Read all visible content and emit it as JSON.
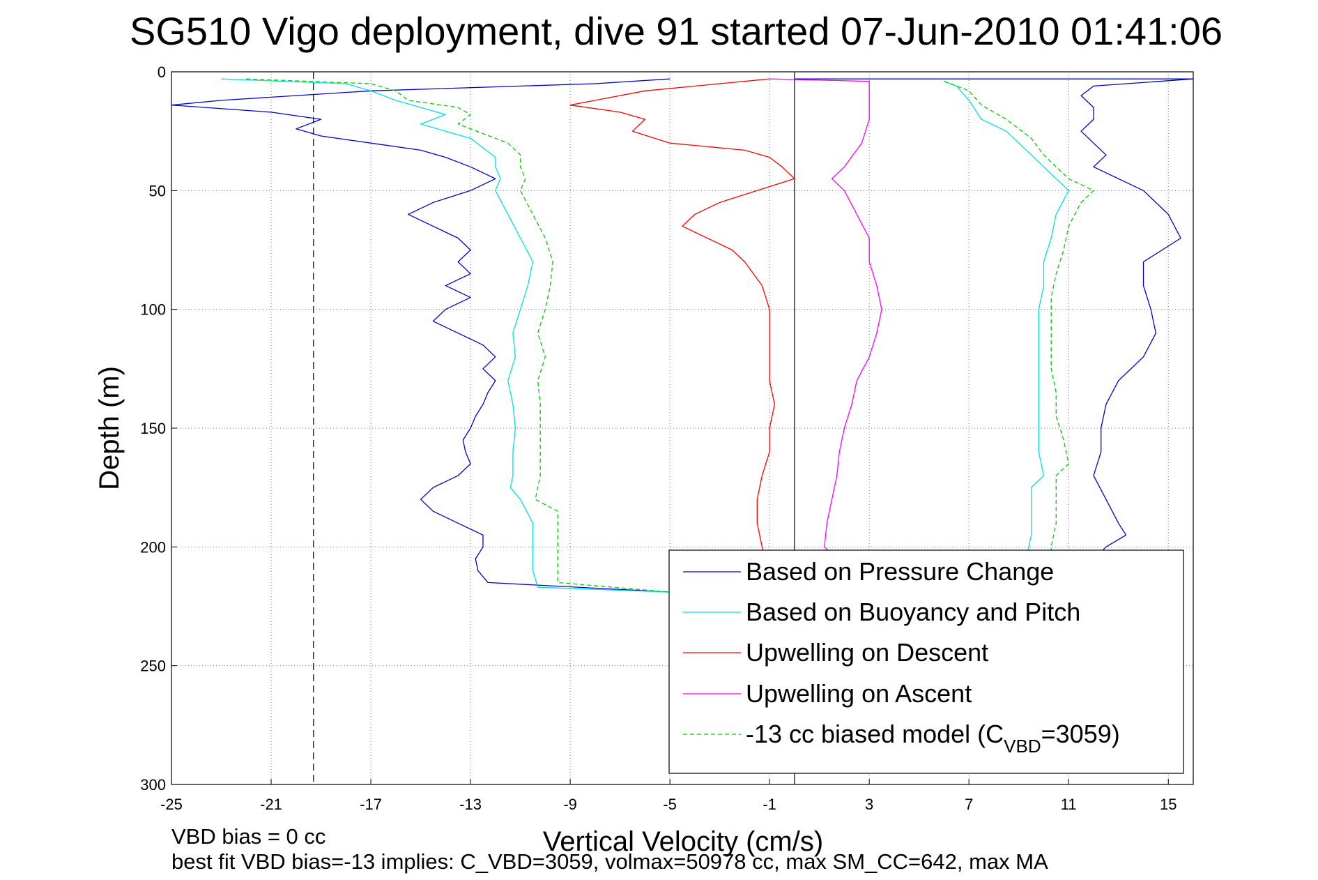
{
  "chart_data": {
    "type": "line",
    "title": "SG510 Vigo deployment, dive 91 started 07-Jun-2010 01:41:06",
    "xlabel": "Vertical Velocity (cm/s)",
    "ylabel": "Depth (m)",
    "xlim": [
      -25,
      16
    ],
    "ylim": [
      0,
      300
    ],
    "y_reversed": true,
    "grid": true,
    "legend_position": "bottom-right",
    "x_ticks": [
      "-25",
      "-21",
      "-17",
      "-13",
      "-9",
      "-5",
      "-1",
      "3",
      "7",
      "11",
      "15"
    ],
    "y_ticks": [
      "0",
      "50",
      "100",
      "150",
      "200",
      "250",
      "300"
    ],
    "reference_lines": [
      {
        "x": -19.3,
        "style": "dashed",
        "color": "#000000"
      },
      {
        "x": 0,
        "style": "solid",
        "color": "#000000"
      }
    ],
    "series": [
      {
        "name": "Based on Pressure Change",
        "color": "#0000cc",
        "style": "solid",
        "points": [
          [
            -5,
            3
          ],
          [
            -8,
            5
          ],
          [
            -17,
            8
          ],
          [
            -23,
            12
          ],
          [
            -25,
            14
          ],
          [
            -21,
            17
          ],
          [
            -19,
            20
          ],
          [
            -20,
            24
          ],
          [
            -19,
            27
          ],
          [
            -17,
            30
          ],
          [
            -15,
            33
          ],
          [
            -14,
            36
          ],
          [
            -13,
            40
          ],
          [
            -12,
            45
          ],
          [
            -13,
            50
          ],
          [
            -14.5,
            55
          ],
          [
            -15.5,
            60
          ],
          [
            -14.5,
            65
          ],
          [
            -13.5,
            70
          ],
          [
            -13,
            75
          ],
          [
            -13.5,
            80
          ],
          [
            -13,
            85
          ],
          [
            -14,
            90
          ],
          [
            -13,
            95
          ],
          [
            -14,
            100
          ],
          [
            -14.5,
            105
          ],
          [
            -13.5,
            110
          ],
          [
            -12.5,
            115
          ],
          [
            -12,
            120
          ],
          [
            -12.5,
            125
          ],
          [
            -12,
            130
          ],
          [
            -12.3,
            135
          ],
          [
            -12.5,
            140
          ],
          [
            -12.8,
            145
          ],
          [
            -13,
            150
          ],
          [
            -13.3,
            155
          ],
          [
            -13.2,
            160
          ],
          [
            -13,
            165
          ],
          [
            -13.5,
            170
          ],
          [
            -14.5,
            175
          ],
          [
            -15,
            180
          ],
          [
            -14.5,
            185
          ],
          [
            -13.5,
            190
          ],
          [
            -12.5,
            195
          ],
          [
            -12.5,
            200
          ],
          [
            -12.8,
            205
          ],
          [
            -12.7,
            210
          ],
          [
            -12.3,
            215
          ],
          [
            -5,
            219
          ]
        ]
      },
      {
        "name": "Based on Buoyancy and Pitch",
        "color": "#00e0e0",
        "style": "solid",
        "points": [
          [
            -23,
            3
          ],
          [
            -18,
            5
          ],
          [
            -17,
            8
          ],
          [
            -16,
            12
          ],
          [
            -15,
            15
          ],
          [
            -14,
            18
          ],
          [
            -15,
            22
          ],
          [
            -14,
            25
          ],
          [
            -13,
            28
          ],
          [
            -12.5,
            32
          ],
          [
            -12,
            36
          ],
          [
            -12,
            40
          ],
          [
            -11.8,
            45
          ],
          [
            -12,
            50
          ],
          [
            -11.5,
            60
          ],
          [
            -11,
            70
          ],
          [
            -10.5,
            80
          ],
          [
            -10.7,
            90
          ],
          [
            -11,
            100
          ],
          [
            -11.3,
            110
          ],
          [
            -11.2,
            120
          ],
          [
            -11.5,
            130
          ],
          [
            -11.3,
            140
          ],
          [
            -11.2,
            150
          ],
          [
            -11.3,
            160
          ],
          [
            -11.3,
            170
          ],
          [
            -11.4,
            175
          ],
          [
            -11,
            180
          ],
          [
            -10.5,
            190
          ],
          [
            -10.5,
            200
          ],
          [
            -10.5,
            210
          ],
          [
            -10.3,
            217
          ],
          [
            -5,
            219
          ]
        ]
      },
      {
        "name": "Upwelling on Descent",
        "color": "#ff0000",
        "style": "solid",
        "points": [
          [
            -1,
            3
          ],
          [
            -3,
            5
          ],
          [
            -6,
            8
          ],
          [
            -8,
            12
          ],
          [
            -9,
            14
          ],
          [
            -7,
            17
          ],
          [
            -6,
            20
          ],
          [
            -6.5,
            25
          ],
          [
            -5,
            30
          ],
          [
            -2,
            33
          ],
          [
            -1,
            36
          ],
          [
            -0.5,
            40
          ],
          [
            0,
            45
          ],
          [
            -1.5,
            50
          ],
          [
            -3,
            55
          ],
          [
            -4,
            60
          ],
          [
            -4.5,
            65
          ],
          [
            -3.5,
            70
          ],
          [
            -2.5,
            75
          ],
          [
            -2,
            80
          ],
          [
            -1.3,
            90
          ],
          [
            -1,
            100
          ],
          [
            -1,
            110
          ],
          [
            -1,
            120
          ],
          [
            -1,
            130
          ],
          [
            -0.8,
            140
          ],
          [
            -1,
            150
          ],
          [
            -1,
            160
          ],
          [
            -1.3,
            170
          ],
          [
            -1.5,
            180
          ],
          [
            -1.5,
            190
          ],
          [
            -1.3,
            200
          ],
          [
            -1.2,
            205
          ]
        ]
      },
      {
        "name": "Upwelling on Ascent",
        "color": "#ff00ff",
        "style": "solid",
        "points": [
          [
            -1,
            3
          ],
          [
            3,
            4
          ],
          [
            3,
            10
          ],
          [
            3,
            20
          ],
          [
            2.7,
            30
          ],
          [
            2,
            40
          ],
          [
            1.5,
            45
          ],
          [
            2,
            50
          ],
          [
            2.5,
            60
          ],
          [
            3,
            70
          ],
          [
            3,
            80
          ],
          [
            3.3,
            90
          ],
          [
            3.5,
            100
          ],
          [
            3.3,
            110
          ],
          [
            3,
            120
          ],
          [
            2.5,
            130
          ],
          [
            2.3,
            140
          ],
          [
            2,
            150
          ],
          [
            1.8,
            160
          ],
          [
            1.7,
            170
          ],
          [
            1.5,
            180
          ],
          [
            1.3,
            190
          ],
          [
            1.2,
            200
          ],
          [
            1.5,
            203
          ]
        ]
      },
      {
        "name": "-13 cc biased model (C",
        "color": "#00cc00",
        "style": "dashed",
        "points": [
          [
            -22,
            3
          ],
          [
            -17,
            5
          ],
          [
            -16,
            8
          ],
          [
            -15.5,
            12
          ],
          [
            -13.5,
            15
          ],
          [
            -13,
            18
          ],
          [
            -13.5,
            22
          ],
          [
            -12.5,
            26
          ],
          [
            -11.5,
            30
          ],
          [
            -11,
            35
          ],
          [
            -11,
            40
          ],
          [
            -10.8,
            45
          ],
          [
            -11,
            50
          ],
          [
            -10.5,
            60
          ],
          [
            -10,
            70
          ],
          [
            -9.7,
            80
          ],
          [
            -9.8,
            90
          ],
          [
            -10,
            100
          ],
          [
            -10.3,
            110
          ],
          [
            -10,
            120
          ],
          [
            -10.3,
            130
          ],
          [
            -10.2,
            140
          ],
          [
            -10.2,
            150
          ],
          [
            -10.2,
            160
          ],
          [
            -10.2,
            170
          ],
          [
            -10.4,
            180
          ],
          [
            -9.5,
            185
          ],
          [
            -9.5,
            195
          ],
          [
            -9.5,
            205
          ],
          [
            -9.5,
            215
          ],
          [
            -5,
            219
          ]
        ]
      },
      {
        "color": "#0000cc",
        "style": "solid",
        "points": [
          [
            0,
            3
          ],
          [
            5,
            3
          ],
          [
            9,
            3
          ],
          [
            16,
            3
          ],
          [
            12,
            6
          ],
          [
            11.5,
            10
          ],
          [
            12,
            15
          ],
          [
            12,
            20
          ],
          [
            11.5,
            25
          ],
          [
            12,
            30
          ],
          [
            12.5,
            35
          ],
          [
            12,
            40
          ],
          [
            13,
            45
          ],
          [
            14,
            50
          ],
          [
            14.5,
            55
          ],
          [
            15,
            60
          ],
          [
            15.5,
            70
          ],
          [
            14,
            80
          ],
          [
            14,
            90
          ],
          [
            14.3,
            100
          ],
          [
            14.5,
            110
          ],
          [
            14,
            120
          ],
          [
            13,
            130
          ],
          [
            12.5,
            140
          ],
          [
            12.3,
            150
          ],
          [
            12.3,
            160
          ],
          [
            12,
            170
          ],
          [
            12.5,
            180
          ],
          [
            13,
            190
          ],
          [
            13.3,
            195
          ],
          [
            12.5,
            200
          ],
          [
            12,
            205
          ]
        ]
      },
      {
        "color": "#00e0e0",
        "style": "solid",
        "points": [
          [
            6,
            4
          ],
          [
            6.5,
            6
          ],
          [
            7,
            12
          ],
          [
            7.5,
            20
          ],
          [
            8.5,
            25
          ],
          [
            9.5,
            35
          ],
          [
            10,
            40
          ],
          [
            10.5,
            45
          ],
          [
            11,
            50
          ],
          [
            10.5,
            60
          ],
          [
            10.3,
            70
          ],
          [
            10,
            80
          ],
          [
            10,
            90
          ],
          [
            9.8,
            100
          ],
          [
            9.8,
            110
          ],
          [
            9.8,
            120
          ],
          [
            9.8,
            130
          ],
          [
            9.8,
            140
          ],
          [
            9.8,
            150
          ],
          [
            9.8,
            160
          ],
          [
            10,
            170
          ],
          [
            9.5,
            175
          ],
          [
            9.5,
            185
          ],
          [
            9.5,
            195
          ],
          [
            9.3,
            205
          ]
        ]
      },
      {
        "color": "#00cc00",
        "style": "dashed",
        "points": [
          [
            6,
            4
          ],
          [
            7,
            8
          ],
          [
            7.5,
            14
          ],
          [
            8.5,
            20
          ],
          [
            9.5,
            28
          ],
          [
            10,
            35
          ],
          [
            10.5,
            40
          ],
          [
            11,
            45
          ],
          [
            12,
            50
          ],
          [
            11.5,
            55
          ],
          [
            11,
            65
          ],
          [
            10.8,
            75
          ],
          [
            10.5,
            85
          ],
          [
            10.3,
            95
          ],
          [
            10.3,
            105
          ],
          [
            10.3,
            115
          ],
          [
            10.3,
            125
          ],
          [
            10.5,
            135
          ],
          [
            10.5,
            145
          ],
          [
            10.8,
            155
          ],
          [
            11,
            165
          ],
          [
            10.5,
            170
          ],
          [
            10.5,
            180
          ],
          [
            10.5,
            190
          ],
          [
            10.3,
            200
          ],
          [
            10.3,
            205
          ]
        ]
      }
    ]
  },
  "legend": {
    "entries": [
      {
        "label": "Based on Pressure Change",
        "color": "#0000cc",
        "style": "solid"
      },
      {
        "label": "Based on Buoyancy and Pitch",
        "color": "#00e0e0",
        "style": "solid"
      },
      {
        "label": "Upwelling on Descent",
        "color": "#ff0000",
        "style": "solid"
      },
      {
        "label": "Upwelling on Ascent",
        "color": "#ff00ff",
        "style": "solid"
      },
      {
        "label": "-13 cc biased model (C",
        "sub": "VBD",
        "label_suffix": "=3059)",
        "color": "#00cc00",
        "style": "dashed"
      }
    ]
  },
  "footnotes": {
    "line1": "VBD bias = 0 cc",
    "line2": "best fit VBD bias=-13 implies: C_VBD=3059, volmax=50978 cc, max SM_CC=642, max MA"
  }
}
